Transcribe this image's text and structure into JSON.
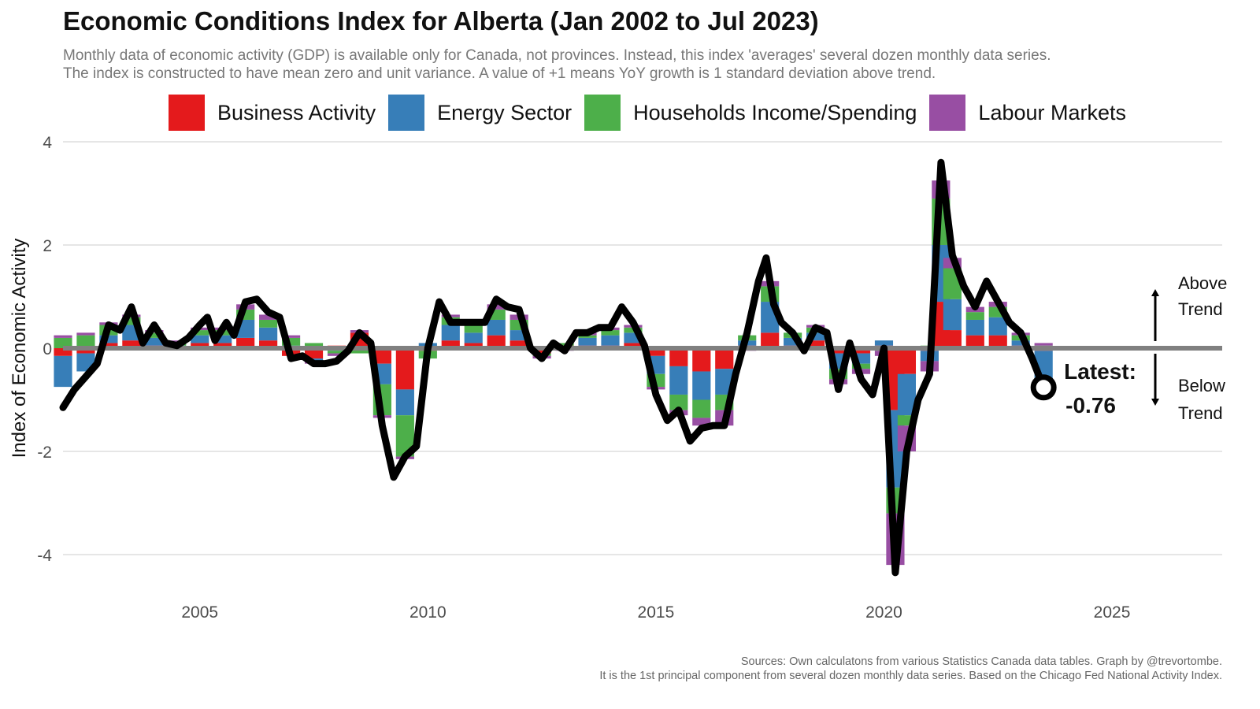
{
  "title": "Economic Conditions Index for Alberta (Jan 2002 to Jul 2023)",
  "subtitle_line1": "Monthly data of economic activity (GDP) is available only for Canada, not provinces. Instead, this index 'averages' several dozen monthly data series.",
  "subtitle_line2": "The index is constructed to have mean zero and unit variance. A value of +1 means YoY growth is 1 standard deviation above trend.",
  "caption_line1": "Sources: Own calculatons from various Statistics Canada data tables. Graph by @trevortombe.",
  "caption_line2": "It is the 1st principal component from several dozen monthly data series. Based on the Chicago Fed National Activity Index.",
  "legend": [
    {
      "label": "Business Activity",
      "color": "#e41a1c"
    },
    {
      "label": "Energy Sector",
      "color": "#377eb8"
    },
    {
      "label": "Households Income/Spending",
      "color": "#4daf4a"
    },
    {
      "label": "Labour Markets",
      "color": "#984ea3"
    }
  ],
  "annotations": {
    "latest_label": "Latest:",
    "latest_value": "-0.76",
    "above_line1": "Above",
    "above_line2": "Trend",
    "below_line1": "Below",
    "below_line2": "Trend"
  },
  "chart_data": {
    "type": "bar",
    "stacked": true,
    "x_type": "date",
    "ylabel": "Index of Economic Activity",
    "xlabel": "",
    "xlim": [
      "2002-01",
      "2027-06"
    ],
    "ylim": [
      -4.6,
      4.2
    ],
    "yticks": [
      4,
      2,
      0,
      -2,
      -4
    ],
    "ytick_labels": [
      "4",
      "2",
      "0",
      "-2",
      "-4"
    ],
    "xticks": [
      "2005",
      "2010",
      "2015",
      "2020",
      "2025"
    ],
    "grid": "horizontal",
    "legend_position": "top",
    "series_order": [
      "Business Activity",
      "Energy Sector",
      "Households Income/Spending",
      "Labour Markets"
    ],
    "index_line": {
      "name": "Index",
      "color": "#000000",
      "points": [
        [
          "2002-01",
          -1.15
        ],
        [
          "2002-04",
          -0.8
        ],
        [
          "2002-07",
          -0.55
        ],
        [
          "2002-10",
          -0.3
        ],
        [
          "2003-01",
          0.45
        ],
        [
          "2003-04",
          0.35
        ],
        [
          "2003-07",
          0.8
        ],
        [
          "2003-10",
          0.1
        ],
        [
          "2004-01",
          0.45
        ],
        [
          "2004-04",
          0.1
        ],
        [
          "2004-07",
          0.05
        ],
        [
          "2004-10",
          0.2
        ],
        [
          "2005-01",
          0.45
        ],
        [
          "2005-03",
          0.6
        ],
        [
          "2005-05",
          0.15
        ],
        [
          "2005-08",
          0.5
        ],
        [
          "2005-10",
          0.25
        ],
        [
          "2006-01",
          0.9
        ],
        [
          "2006-04",
          0.95
        ],
        [
          "2006-07",
          0.7
        ],
        [
          "2006-10",
          0.6
        ],
        [
          "2007-01",
          -0.2
        ],
        [
          "2007-04",
          -0.15
        ],
        [
          "2007-07",
          -0.3
        ],
        [
          "2007-10",
          -0.3
        ],
        [
          "2008-01",
          -0.25
        ],
        [
          "2008-04",
          -0.05
        ],
        [
          "2008-07",
          0.3
        ],
        [
          "2008-10",
          0.1
        ],
        [
          "2009-01",
          -1.5
        ],
        [
          "2009-04",
          -2.5
        ],
        [
          "2009-07",
          -2.1
        ],
        [
          "2009-10",
          -1.9
        ],
        [
          "2010-01",
          0.0
        ],
        [
          "2010-04",
          0.9
        ],
        [
          "2010-07",
          0.5
        ],
        [
          "2010-10",
          0.5
        ],
        [
          "2011-01",
          0.5
        ],
        [
          "2011-04",
          0.5
        ],
        [
          "2011-07",
          0.95
        ],
        [
          "2011-10",
          0.8
        ],
        [
          "2012-01",
          0.75
        ],
        [
          "2012-04",
          0.0
        ],
        [
          "2012-07",
          -0.2
        ],
        [
          "2012-10",
          0.1
        ],
        [
          "2013-01",
          -0.05
        ],
        [
          "2013-04",
          0.3
        ],
        [
          "2013-07",
          0.3
        ],
        [
          "2013-10",
          0.4
        ],
        [
          "2014-01",
          0.4
        ],
        [
          "2014-04",
          0.8
        ],
        [
          "2014-07",
          0.5
        ],
        [
          "2014-10",
          0.05
        ],
        [
          "2015-01",
          -0.9
        ],
        [
          "2015-04",
          -1.4
        ],
        [
          "2015-07",
          -1.2
        ],
        [
          "2015-10",
          -1.8
        ],
        [
          "2016-01",
          -1.55
        ],
        [
          "2016-04",
          -1.5
        ],
        [
          "2016-07",
          -1.5
        ],
        [
          "2016-10",
          -0.5
        ],
        [
          "2017-01",
          0.3
        ],
        [
          "2017-04",
          1.3
        ],
        [
          "2017-06",
          1.75
        ],
        [
          "2017-08",
          0.85
        ],
        [
          "2017-10",
          0.5
        ],
        [
          "2018-01",
          0.3
        ],
        [
          "2018-04",
          -0.05
        ],
        [
          "2018-07",
          0.4
        ],
        [
          "2018-10",
          0.3
        ],
        [
          "2019-01",
          -0.8
        ],
        [
          "2019-04",
          0.1
        ],
        [
          "2019-07",
          -0.6
        ],
        [
          "2019-10",
          -0.9
        ],
        [
          "2020-01",
          0.0
        ],
        [
          "2020-04",
          -4.35
        ],
        [
          "2020-07",
          -2.0
        ],
        [
          "2020-10",
          -1.0
        ],
        [
          "2021-01",
          -0.5
        ],
        [
          "2021-04",
          3.6
        ],
        [
          "2021-07",
          1.8
        ],
        [
          "2021-10",
          1.2
        ],
        [
          "2022-01",
          0.8
        ],
        [
          "2022-04",
          1.3
        ],
        [
          "2022-07",
          0.9
        ],
        [
          "2022-10",
          0.5
        ],
        [
          "2023-01",
          0.3
        ],
        [
          "2023-04",
          -0.2
        ],
        [
          "2023-07",
          -0.76
        ]
      ]
    },
    "components": [
      {
        "date": "2002-01",
        "values": [
          -0.15,
          -0.6,
          0.2,
          0.05
        ]
      },
      {
        "date": "2002-07",
        "values": [
          -0.1,
          -0.35,
          0.25,
          0.05
        ]
      },
      {
        "date": "2003-01",
        "values": [
          0.1,
          0.15,
          0.2,
          0.05
        ]
      },
      {
        "date": "2003-07",
        "values": [
          0.15,
          0.3,
          0.15,
          0.05
        ]
      },
      {
        "date": "2004-01",
        "values": [
          0.05,
          0.15,
          0.1,
          0.05
        ]
      },
      {
        "date": "2004-07",
        "values": [
          0.0,
          0.05,
          0.05,
          0.05
        ]
      },
      {
        "date": "2005-01",
        "values": [
          0.1,
          0.15,
          0.1,
          0.05
        ]
      },
      {
        "date": "2005-07",
        "values": [
          0.1,
          0.15,
          0.1,
          0.05
        ]
      },
      {
        "date": "2006-01",
        "values": [
          0.2,
          0.35,
          0.2,
          0.1
        ]
      },
      {
        "date": "2006-07",
        "values": [
          0.15,
          0.25,
          0.15,
          0.1
        ]
      },
      {
        "date": "2007-01",
        "values": [
          -0.15,
          0.05,
          0.15,
          0.05
        ]
      },
      {
        "date": "2007-07",
        "values": [
          -0.2,
          -0.05,
          0.1,
          -0.05
        ]
      },
      {
        "date": "2008-01",
        "values": [
          0.05,
          -0.05,
          -0.05,
          -0.05
        ]
      },
      {
        "date": "2008-07",
        "values": [
          0.3,
          0.0,
          -0.1,
          0.05
        ]
      },
      {
        "date": "2009-01",
        "values": [
          -0.3,
          -0.4,
          -0.6,
          -0.05
        ]
      },
      {
        "date": "2009-07",
        "values": [
          -0.8,
          -0.5,
          -0.8,
          -0.05
        ]
      },
      {
        "date": "2010-01",
        "values": [
          -0.05,
          0.1,
          -0.15,
          0.0
        ]
      },
      {
        "date": "2010-07",
        "values": [
          0.15,
          0.3,
          0.15,
          0.05
        ]
      },
      {
        "date": "2011-01",
        "values": [
          0.1,
          0.2,
          0.15,
          0.05
        ]
      },
      {
        "date": "2011-07",
        "values": [
          0.25,
          0.3,
          0.2,
          0.1
        ]
      },
      {
        "date": "2012-01",
        "values": [
          0.15,
          0.2,
          0.2,
          0.1
        ]
      },
      {
        "date": "2012-07",
        "values": [
          -0.1,
          0.0,
          -0.05,
          -0.05
        ]
      },
      {
        "date": "2013-01",
        "values": [
          0.05,
          0.0,
          0.05,
          -0.05
        ]
      },
      {
        "date": "2013-07",
        "values": [
          0.05,
          0.15,
          0.05,
          0.05
        ]
      },
      {
        "date": "2014-01",
        "values": [
          0.05,
          0.2,
          0.1,
          0.05
        ]
      },
      {
        "date": "2014-07",
        "values": [
          0.1,
          0.2,
          0.1,
          0.05
        ]
      },
      {
        "date": "2015-01",
        "values": [
          -0.15,
          -0.35,
          -0.25,
          -0.05
        ]
      },
      {
        "date": "2015-07",
        "values": [
          -0.35,
          -0.55,
          -0.3,
          -0.1
        ]
      },
      {
        "date": "2016-01",
        "values": [
          -0.45,
          -0.55,
          -0.35,
          -0.15
        ]
      },
      {
        "date": "2016-07",
        "values": [
          -0.4,
          -0.5,
          -0.3,
          -0.3
        ]
      },
      {
        "date": "2017-01",
        "values": [
          0.05,
          0.1,
          0.1,
          -0.05
        ]
      },
      {
        "date": "2017-07",
        "values": [
          0.3,
          0.6,
          0.3,
          0.1
        ]
      },
      {
        "date": "2018-01",
        "values": [
          0.05,
          0.15,
          0.1,
          0.0
        ]
      },
      {
        "date": "2018-07",
        "values": [
          0.15,
          0.15,
          0.1,
          0.05
        ]
      },
      {
        "date": "2019-01",
        "values": [
          -0.1,
          -0.3,
          -0.2,
          -0.1
        ]
      },
      {
        "date": "2019-07",
        "values": [
          -0.1,
          -0.2,
          -0.1,
          -0.1
        ]
      },
      {
        "date": "2020-01",
        "values": [
          0.05,
          0.1,
          -0.05,
          -0.1
        ]
      },
      {
        "date": "2020-04",
        "values": [
          -1.2,
          -1.5,
          -0.5,
          -1.0
        ]
      },
      {
        "date": "2020-07",
        "values": [
          -0.5,
          -0.8,
          -0.2,
          -0.5
        ]
      },
      {
        "date": "2021-01",
        "values": [
          -0.05,
          -0.2,
          0.05,
          -0.2
        ]
      },
      {
        "date": "2021-04",
        "values": [
          0.9,
          1.1,
          0.9,
          0.35
        ]
      },
      {
        "date": "2021-07",
        "values": [
          0.35,
          0.6,
          0.6,
          0.2
        ]
      },
      {
        "date": "2022-01",
        "values": [
          0.25,
          0.3,
          0.15,
          0.1
        ]
      },
      {
        "date": "2022-07",
        "values": [
          0.25,
          0.35,
          0.2,
          0.1
        ]
      },
      {
        "date": "2023-01",
        "values": [
          0.05,
          0.1,
          0.1,
          0.05
        ]
      },
      {
        "date": "2023-07",
        "values": [
          -0.05,
          -0.6,
          0.05,
          0.05
        ]
      }
    ]
  }
}
